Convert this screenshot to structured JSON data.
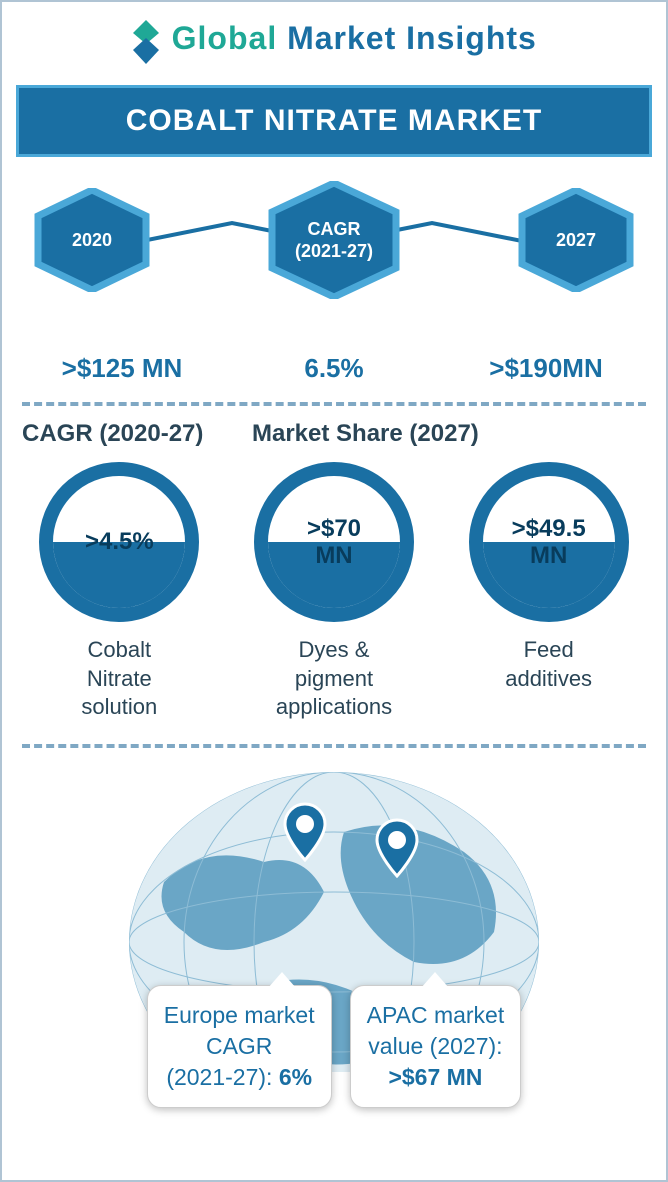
{
  "colors": {
    "primary": "#1a6fa3",
    "accent": "#4aa8d8",
    "dark": "#083c5c",
    "teal": "#1fa896",
    "text": "#2a4556",
    "dash": "#7fa8c4",
    "globe": "#3d8bb5"
  },
  "logo": {
    "brand_global": "Global",
    "brand_rest": " Market Insights"
  },
  "title": "COBALT NITRATE MARKET",
  "hexagons": [
    {
      "label": "2020",
      "value": ">$125 MN"
    },
    {
      "label": "CAGR\n(2021-27)",
      "value": "6.5%"
    },
    {
      "label": "2027",
      "value": ">$190MN"
    }
  ],
  "headers": {
    "left": "CAGR (2020-27)",
    "right": "Market Share (2027)"
  },
  "circles": [
    {
      "value": ">4.5%",
      "label": "Cobalt\nNitrate\nsolution"
    },
    {
      "value": ">$70\nMN",
      "label": "Dyes &\npigment\napplications"
    },
    {
      "value": ">$49.5\nMN",
      "label": "Feed\nadditives"
    }
  ],
  "callouts": [
    {
      "text": "Europe market\nCAGR\n(2021-27): ",
      "bold": "6%"
    },
    {
      "text": "APAC market\nvalue (2027):\n",
      "bold": ">$67 MN"
    }
  ]
}
